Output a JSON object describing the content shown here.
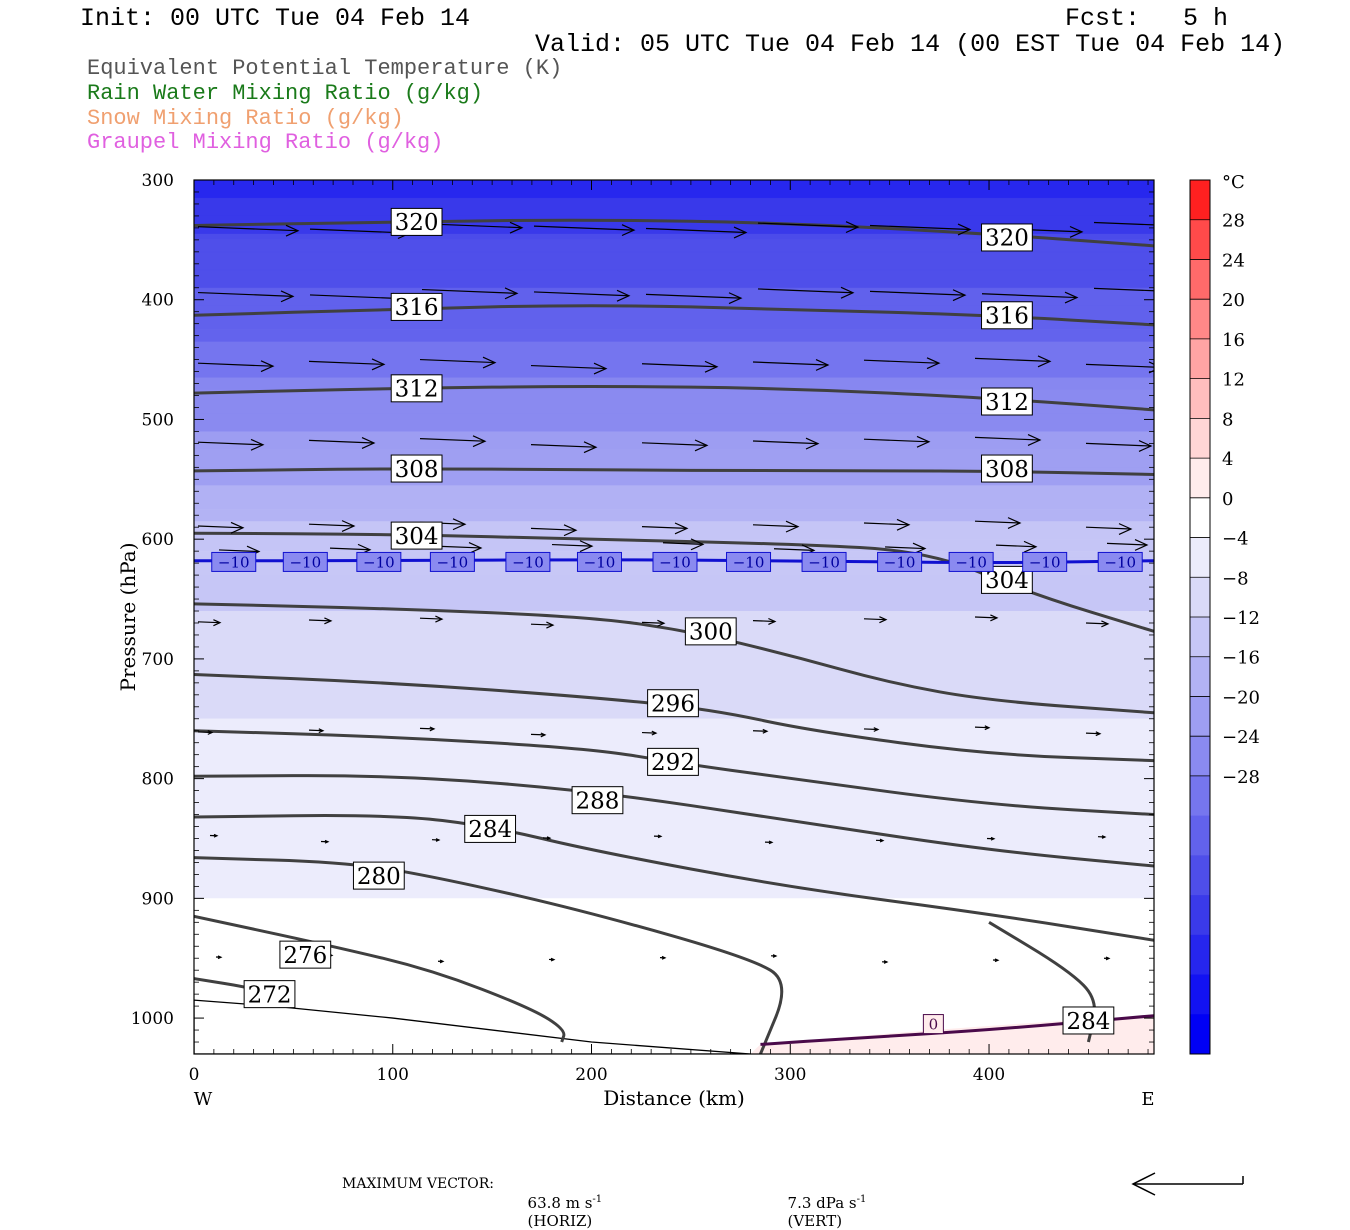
{
  "header": {
    "init": "Init: 00 UTC Tue 04 Feb 14",
    "fcst_label": "Fcst:",
    "fcst_value": "5 h",
    "valid": "Valid: 05 UTC Tue 04 Feb 14 (00 EST Tue 04 Feb 14)"
  },
  "legend": [
    {
      "text": "Equivalent Potential Temperature (K)",
      "color": "#555555"
    },
    {
      "text": "Rain Water Mixing Ratio (g/kg)",
      "color": "#1a7a1a"
    },
    {
      "text": "Snow Mixing Ratio (g/kg)",
      "color": "#f0a070"
    },
    {
      "text": "Graupel Mixing Ratio (g/kg)",
      "color": "#e060e0"
    }
  ],
  "footer": {
    "max_vector_label": "MAXIMUM VECTOR:",
    "horiz_value": "63.8 m s",
    "horiz_unit": "(HORIZ)",
    "vert_value": "7.3 dPa s",
    "vert_unit": "(VERT)",
    "exponent": "-1"
  },
  "chart_data": {
    "type": "heatmap",
    "description_type": "vertical cross-section with contours and wind vectors",
    "xlabel": "Distance (km)",
    "ylabel": "Pressure (hPa)",
    "xlim": [
      0,
      483
    ],
    "ylim": [
      1030,
      300
    ],
    "x_ticks": [
      0,
      100,
      200,
      300,
      400
    ],
    "y_ticks": [
      300,
      400,
      500,
      600,
      700,
      800,
      900,
      1000
    ],
    "x_end_labels": {
      "left": "W",
      "right": "E"
    },
    "colorbar": {
      "unit": "°C",
      "labels": [
        28,
        24,
        20,
        16,
        12,
        8,
        4,
        0,
        -4,
        -8,
        -12,
        -16,
        -20,
        -24,
        -28
      ],
      "colors": [
        "#ff2020",
        "#ff4a4a",
        "#ff6a6a",
        "#ff8888",
        "#ffa4a4",
        "#ffbebe",
        "#ffd6d6",
        "#ffecec",
        "#ffffff",
        "#ececfc",
        "#dadaf8",
        "#c6c6f6",
        "#b2b2f4",
        "#9e9ef2",
        "#8a8af0",
        "#7676ee",
        "#6262ec",
        "#4e4eea",
        "#3a3aea",
        "#2626ee",
        "#1212f2",
        "#0000f5"
      ]
    },
    "temperature_bands": [
      {
        "p": 300,
        "t": -40
      },
      {
        "p": 400,
        "t": -32
      },
      {
        "p": 450,
        "t": -28
      },
      {
        "p": 500,
        "t": -24
      },
      {
        "p": 550,
        "t": -20
      },
      {
        "p": 600,
        "t": -14
      },
      {
        "p": 620,
        "t": -10
      },
      {
        "p": 700,
        "t": -6
      },
      {
        "p": 800,
        "t": -4
      },
      {
        "p": 1000,
        "t": 0
      }
    ],
    "theta_e_contours": [
      {
        "value": 320,
        "points": [
          [
            0,
            338
          ],
          [
            100,
            335
          ],
          [
            200,
            333
          ],
          [
            300,
            336
          ],
          [
            400,
            345
          ],
          [
            483,
            355
          ]
        ],
        "labels": [
          [
            112,
            335
          ],
          [
            409,
            348
          ]
        ]
      },
      {
        "value": 316,
        "points": [
          [
            0,
            413
          ],
          [
            100,
            408
          ],
          [
            200,
            404
          ],
          [
            300,
            408
          ],
          [
            400,
            413
          ],
          [
            483,
            421
          ]
        ],
        "labels": [
          [
            112,
            406
          ],
          [
            409,
            413
          ]
        ]
      },
      {
        "value": 312,
        "points": [
          [
            0,
            478
          ],
          [
            100,
            474
          ],
          [
            200,
            472
          ],
          [
            300,
            474
          ],
          [
            400,
            482
          ],
          [
            483,
            492
          ]
        ],
        "labels": [
          [
            112,
            474
          ],
          [
            409,
            485
          ]
        ]
      },
      {
        "value": 308,
        "points": [
          [
            0,
            543
          ],
          [
            100,
            541
          ],
          [
            200,
            542
          ],
          [
            300,
            543
          ],
          [
            400,
            543
          ],
          [
            483,
            546
          ]
        ],
        "labels": [
          [
            112,
            541
          ],
          [
            409,
            541
          ]
        ]
      },
      {
        "value": 304,
        "points": [
          [
            0,
            595
          ],
          [
            100,
            596
          ],
          [
            200,
            600
          ],
          [
            300,
            604
          ],
          [
            370,
            610
          ],
          [
            420,
            645
          ],
          [
            483,
            677
          ]
        ],
        "labels": [
          [
            112,
            597
          ],
          [
            409,
            634
          ]
        ]
      },
      {
        "value": 300,
        "points": [
          [
            0,
            654
          ],
          [
            100,
            658
          ],
          [
            200,
            665
          ],
          [
            250,
            677
          ],
          [
            300,
            697
          ],
          [
            350,
            720
          ],
          [
            400,
            735
          ],
          [
            483,
            745
          ]
        ],
        "labels": [
          [
            260,
            677
          ]
        ]
      },
      {
        "value": 296,
        "points": [
          [
            0,
            713
          ],
          [
            100,
            720
          ],
          [
            200,
            732
          ],
          [
            260,
            742
          ],
          [
            310,
            760
          ],
          [
            400,
            780
          ],
          [
            483,
            785
          ]
        ],
        "labels": [
          [
            241,
            737
          ]
        ]
      },
      {
        "value": 292,
        "points": [
          [
            0,
            760
          ],
          [
            100,
            765
          ],
          [
            200,
            775
          ],
          [
            240,
            786
          ],
          [
            300,
            800
          ],
          [
            400,
            822
          ],
          [
            483,
            830
          ]
        ],
        "labels": [
          [
            241,
            786
          ]
        ]
      },
      {
        "value": 288,
        "points": [
          [
            0,
            798
          ],
          [
            100,
            797
          ],
          [
            200,
            810
          ],
          [
            300,
            835
          ],
          [
            400,
            860
          ],
          [
            483,
            873
          ]
        ],
        "labels": [
          [
            203,
            818
          ]
        ]
      },
      {
        "value": 284,
        "points": [
          [
            0,
            832
          ],
          [
            100,
            830
          ],
          [
            150,
            840
          ],
          [
            200,
            860
          ],
          [
            300,
            891
          ],
          [
            400,
            913
          ],
          [
            483,
            935
          ]
        ],
        "labels": [
          [
            149,
            842
          ]
        ]
      },
      {
        "value": 280,
        "points": [
          [
            0,
            866
          ],
          [
            80,
            870
          ],
          [
            130,
            885
          ],
          [
            200,
            912
          ],
          [
            280,
            950
          ],
          [
            300,
            970
          ],
          [
            285,
            1030
          ]
        ],
        "labels": [
          [
            93,
            881
          ]
        ]
      },
      {
        "value": 276,
        "points": [
          [
            0,
            915
          ],
          [
            70,
            940
          ],
          [
            120,
            960
          ],
          [
            170,
            992
          ],
          [
            187,
            1010
          ],
          [
            185,
            1020
          ]
        ],
        "labels": [
          [
            56,
            947
          ]
        ]
      },
      {
        "value": 272,
        "points": [
          [
            0,
            967
          ],
          [
            30,
            975
          ],
          [
            50,
            985
          ]
        ],
        "labels": [
          [
            38,
            980
          ]
        ]
      },
      {
        "value": 284,
        "points": [
          [
            400,
            920
          ],
          [
            440,
            960
          ],
          [
            455,
            985
          ],
          [
            450,
            1020
          ]
        ],
        "labels": [
          [
            450,
            1002
          ]
        ]
      }
    ],
    "isotherm_minus10": {
      "value": -10,
      "points": [
        [
          0,
          618
        ],
        [
          100,
          618
        ],
        [
          200,
          617
        ],
        [
          300,
          618
        ],
        [
          400,
          620
        ],
        [
          483,
          618
        ]
      ],
      "labels": [
        20,
        56,
        93,
        130,
        168,
        204,
        242,
        279,
        317,
        355,
        391,
        428,
        466
      ]
    },
    "isotherm_0": {
      "value": 0,
      "points": [
        [
          285,
          1022
        ],
        [
          330,
          1017
        ],
        [
          400,
          1010
        ],
        [
          483,
          998
        ]
      ],
      "labels": [
        [
          372,
          1005
        ]
      ]
    }
  }
}
